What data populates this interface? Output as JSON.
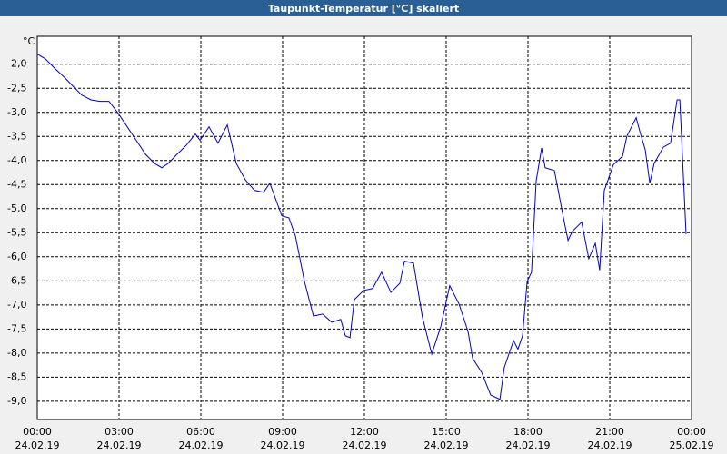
{
  "chart_data": {
    "type": "line",
    "title": "Taupunkt-Temperatur [°C] skaliert",
    "y_unit": "°C",
    "x": [
      0,
      0.3,
      0.63,
      0.97,
      1.3,
      1.63,
      1.97,
      2.3,
      2.63,
      2.97,
      3.3,
      3.63,
      3.97,
      4.3,
      4.57,
      4.8,
      5.13,
      5.47,
      5.8,
      5.97,
      6.3,
      6.63,
      6.97,
      7.3,
      7.63,
      7.97,
      8.3,
      8.53,
      8.97,
      9.23,
      9.47,
      9.8,
      10.13,
      10.47,
      10.8,
      11.13,
      11.3,
      11.47,
      11.63,
      11.97,
      12.3,
      12.63,
      12.97,
      13.3,
      13.47,
      13.8,
      14.13,
      14.47,
      14.8,
      15.13,
      15.47,
      15.8,
      15.97,
      16.3,
      16.63,
      16.97,
      17.13,
      17.47,
      17.63,
      17.8,
      17.97,
      18.13,
      18.3,
      18.5,
      18.63,
      18.97,
      19.3,
      19.47,
      19.63,
      19.97,
      20.23,
      20.47,
      20.63,
      20.8,
      21.13,
      21.47,
      21.63,
      21.97,
      22.13,
      22.3,
      22.47,
      22.63,
      22.97,
      23.23,
      23.47,
      23.57,
      23.8
    ],
    "series": [
      {
        "name": "Taupunkt-Temperatur",
        "color": "#0000cc",
        "values": [
          -1.79,
          -1.89,
          -2.08,
          -2.26,
          -2.45,
          -2.64,
          -2.74,
          -2.77,
          -2.77,
          -3.02,
          -3.3,
          -3.58,
          -3.87,
          -4.06,
          -4.15,
          -4.06,
          -3.87,
          -3.68,
          -3.45,
          -3.58,
          -3.3,
          -3.64,
          -3.26,
          -4.06,
          -4.4,
          -4.62,
          -4.66,
          -4.47,
          -5.15,
          -5.19,
          -5.57,
          -6.51,
          -7.23,
          -7.19,
          -7.36,
          -7.3,
          -7.64,
          -7.68,
          -6.89,
          -6.7,
          -6.66,
          -6.32,
          -6.74,
          -6.55,
          -6.09,
          -6.13,
          -7.26,
          -8.02,
          -7.45,
          -6.6,
          -6.98,
          -7.55,
          -8.11,
          -8.4,
          -8.87,
          -8.96,
          -8.3,
          -7.74,
          -7.92,
          -7.64,
          -6.51,
          -6.32,
          -4.43,
          -3.74,
          -4.15,
          -4.21,
          -5.19,
          -5.66,
          -5.47,
          -5.28,
          -6.04,
          -5.72,
          -6.28,
          -4.62,
          -4.09,
          -3.91,
          -3.49,
          -3.11,
          -3.45,
          -3.77,
          -4.47,
          -4.06,
          -3.72,
          -3.64,
          -2.74,
          -2.74,
          -5.53
        ]
      }
    ],
    "xlim": [
      0,
      24
    ],
    "xticks": [
      {
        "value": 0,
        "label": "00:00"
      },
      {
        "value": 3,
        "label": "03:00"
      },
      {
        "value": 6,
        "label": "06:00"
      },
      {
        "value": 9,
        "label": "09:00"
      },
      {
        "value": 12,
        "label": "12:00"
      },
      {
        "value": 15,
        "label": "15:00"
      },
      {
        "value": 18,
        "label": "18:00"
      },
      {
        "value": 21,
        "label": "21:00"
      },
      {
        "value": 24,
        "label": "00:00"
      }
    ],
    "xtick_dates": [
      "24.02.19",
      "24.02.19",
      "24.02.19",
      "24.02.19",
      "24.02.19",
      "24.02.19",
      "24.02.19",
      "24.02.19",
      "25.02.19"
    ],
    "ylim": [
      -9.38,
      -1.42
    ],
    "yticks": [
      {
        "value": -2,
        "label": "-2,0"
      },
      {
        "value": -2.5,
        "label": "-2,5"
      },
      {
        "value": -3,
        "label": "-3,0"
      },
      {
        "value": -3.5,
        "label": "-3,5"
      },
      {
        "value": -4,
        "label": "-4,0"
      },
      {
        "value": -4.5,
        "label": "-4,5"
      },
      {
        "value": -5,
        "label": "-5,0"
      },
      {
        "value": -5.5,
        "label": "-5,5"
      },
      {
        "value": -6,
        "label": "-6,0"
      },
      {
        "value": -6.5,
        "label": "-6,5"
      },
      {
        "value": -7,
        "label": "-7,0"
      },
      {
        "value": -7.5,
        "label": "-7,5"
      },
      {
        "value": -8,
        "label": "-8,0"
      },
      {
        "value": -8.5,
        "label": "-8,5"
      },
      {
        "value": -9,
        "label": "-9,0"
      }
    ],
    "grid": true
  }
}
